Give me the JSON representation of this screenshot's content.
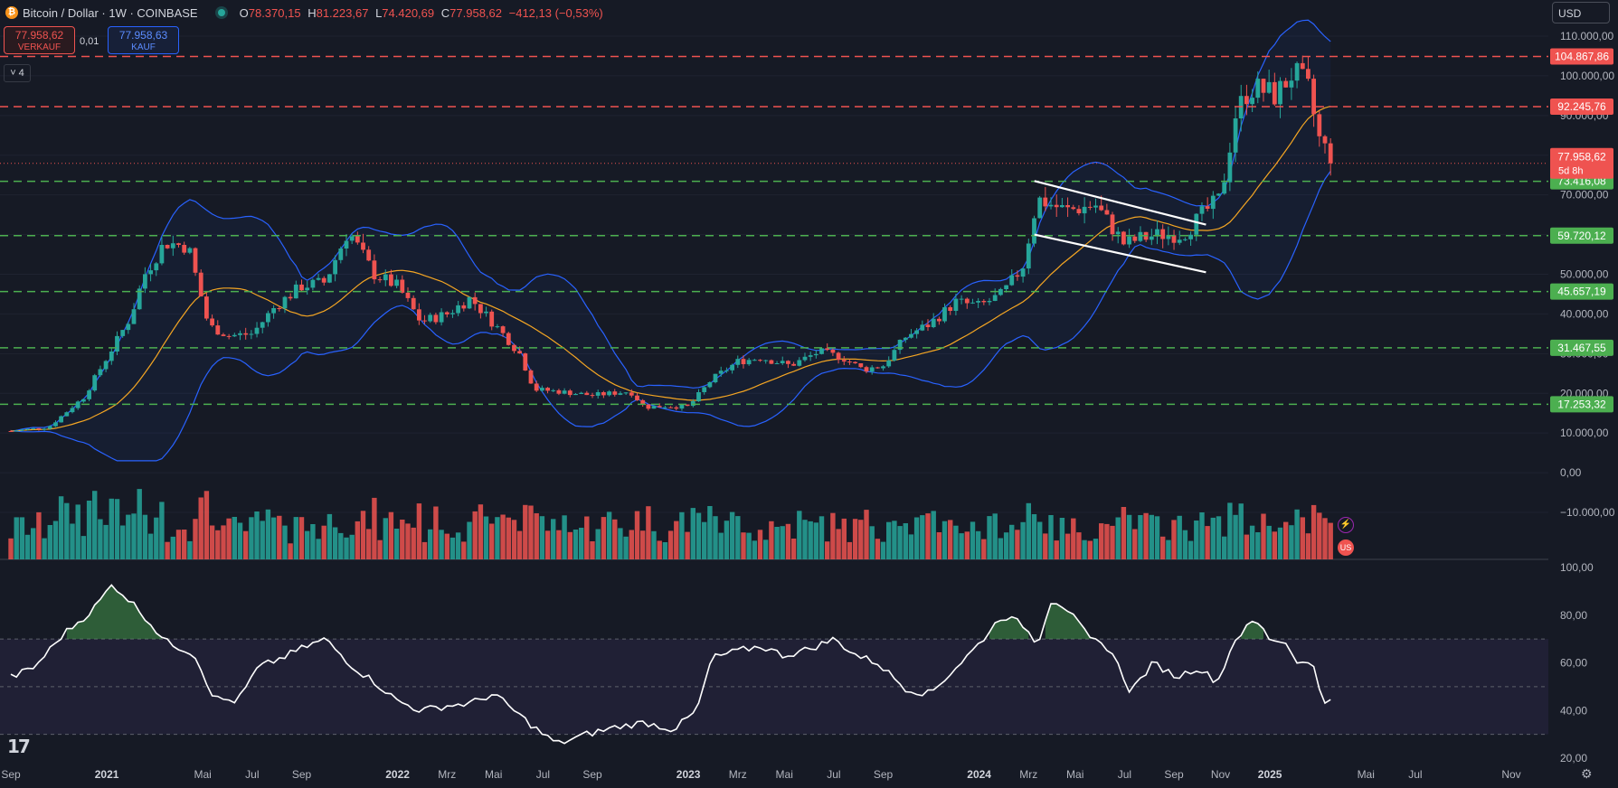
{
  "header": {
    "symbol": "Bitcoin / Dollar · 1W · COINBASE",
    "btc_glyph": "₿",
    "ohlc": [
      {
        "k": "O",
        "v": "78.370,15"
      },
      {
        "k": "H",
        "v": "81.223,67"
      },
      {
        "k": "L",
        "v": "74.420,69"
      },
      {
        "k": "C",
        "v": "77.958,62"
      }
    ],
    "change": "−412,13 (−0,53%)"
  },
  "trade": {
    "sell_price": "77.958,62",
    "sell_label": "VERKAUF",
    "buy_price": "77.958,63",
    "buy_label": "KAUF",
    "spread": "0,01"
  },
  "indicators_collapse": "˅ 4",
  "currency": "USD",
  "logo": "17",
  "gear_icon": "⚙",
  "colors": {
    "background": "#161a25",
    "up": "#26a69a",
    "down": "#ef5350",
    "bollinger": "#2962ff",
    "sma": "#f5a623",
    "resistance": "#ef5350",
    "support": "#4caf50",
    "rsi": "#ffffff"
  },
  "chart_data": [
    {
      "type": "candlestick",
      "title": "Bitcoin / Dollar · 1W · COINBASE",
      "x_ticks": [
        "Sep",
        "2021",
        "Mai",
        "Jul",
        "Sep",
        "2022",
        "Mrz",
        "Mai",
        "Jul",
        "Sep",
        "2023",
        "Mrz",
        "Mai",
        "Jul",
        "Sep",
        "2024",
        "Mrz",
        "Mai",
        "Jul",
        "Sep",
        "Nov",
        "2025",
        "Mai",
        "Jul",
        "Nov"
      ],
      "y_ticks": [
        "110.000,00",
        "100.000,00",
        "90.000,00",
        "80.000,00",
        "70.000,00",
        "60.000,00",
        "50.000,00",
        "40.000,00",
        "30.000,00",
        "20.000,00",
        "10.000,00",
        "0,00",
        "−10.000,00"
      ],
      "ylim": [
        -10000,
        110000
      ],
      "last_price": {
        "value": 77958.62,
        "label": "77.958,62",
        "countdown": "5d 8h"
      },
      "horizontal_levels": [
        {
          "value": 104867.86,
          "label": "104.867,86",
          "kind": "resistance"
        },
        {
          "value": 92245.76,
          "label": "92.245,76",
          "kind": "resistance"
        },
        {
          "value": 73416.08,
          "label": "73.416,08",
          "kind": "support"
        },
        {
          "value": 59720.12,
          "label": "59.720,12",
          "kind": "support"
        },
        {
          "value": 45657.19,
          "label": "45.657,19",
          "kind": "support"
        },
        {
          "value": 31467.55,
          "label": "31.467,55",
          "kind": "support"
        },
        {
          "value": 17253.32,
          "label": "17.253,32",
          "kind": "support"
        }
      ],
      "channel_lines": [
        {
          "x": [
            2024.19,
            2024.78
          ],
          "y": [
            73500,
            62500
          ]
        },
        {
          "x": [
            2024.19,
            2024.78
          ],
          "y": [
            60000,
            50500
          ]
        }
      ],
      "close_keypoints": {
        "x": [
          2020.67,
          2020.8,
          2020.92,
          2021.0,
          2021.08,
          2021.13,
          2021.2,
          2021.28,
          2021.35,
          2021.42,
          2021.5,
          2021.58,
          2021.67,
          2021.75,
          2021.83,
          2021.92,
          2022.0,
          2022.08,
          2022.17,
          2022.25,
          2022.35,
          2022.42,
          2022.47,
          2022.55,
          2022.67,
          2022.8,
          2022.85,
          2022.92,
          2023.0,
          2023.08,
          2023.17,
          2023.25,
          2023.35,
          2023.45,
          2023.53,
          2023.6,
          2023.67,
          2023.75,
          2023.83,
          2023.92,
          2024.0,
          2024.08,
          2024.15,
          2024.2,
          2024.3,
          2024.4,
          2024.5,
          2024.55,
          2024.62,
          2024.7,
          2024.78,
          2024.83,
          2024.88,
          2024.93,
          2024.97,
          2025.02,
          2025.08,
          2025.13,
          2025.17,
          2025.22
        ],
        "y": [
          10500,
          11500,
          19000,
          29000,
          39000,
          50000,
          58000,
          57000,
          37000,
          34500,
          35000,
          42000,
          47000,
          48000,
          61000,
          50000,
          47000,
          38000,
          40000,
          44000,
          36000,
          30000,
          21000,
          20500,
          19500,
          20500,
          16500,
          16800,
          16600,
          23500,
          28000,
          29000,
          27000,
          30500,
          29000,
          26000,
          27000,
          34500,
          37500,
          43000,
          42000,
          45000,
          52000,
          69000,
          66000,
          67500,
          57500,
          59000,
          60000,
          60000,
          66000,
          69000,
          90000,
          97000,
          96500,
          95000,
          101000,
          97000,
          84000,
          77958.62
        ]
      },
      "volume_pane": {
        "range": [
          -10000,
          0
        ]
      },
      "rsi": {
        "name": "RSI",
        "y_ticks": [
          "100,00",
          "80,00",
          "60,00",
          "40,00",
          "20,00"
        ],
        "ylim": [
          20,
          100
        ],
        "band": [
          30,
          70
        ],
        "midline": 50,
        "x": [
          2020.67,
          2020.75,
          2020.85,
          2020.95,
          2021.02,
          2021.08,
          2021.12,
          2021.2,
          2021.3,
          2021.37,
          2021.45,
          2021.52,
          2021.6,
          2021.67,
          2021.75,
          2021.85,
          2021.92,
          2022.0,
          2022.08,
          2022.17,
          2022.25,
          2022.33,
          2022.42,
          2022.5,
          2022.55,
          2022.65,
          2022.75,
          2022.85,
          2022.95,
          2023.03,
          2023.08,
          2023.17,
          2023.25,
          2023.33,
          2023.42,
          2023.5,
          2023.58,
          2023.65,
          2023.75,
          2023.83,
          2023.92,
          2024.0,
          2024.08,
          2024.15,
          2024.2,
          2024.25,
          2024.3,
          2024.38,
          2024.45,
          2024.52,
          2024.6,
          2024.68,
          2024.75,
          2024.82,
          2024.88,
          2024.95,
          2025.0,
          2025.05,
          2025.1,
          2025.15,
          2025.18,
          2025.22
        ],
        "y": [
          54,
          58,
          72,
          82,
          93,
          86,
          81,
          69,
          64,
          45,
          44,
          58,
          62,
          66,
          70,
          58,
          52,
          44,
          40,
          42,
          43,
          47,
          38,
          30,
          26,
          30,
          33,
          35,
          32,
          40,
          62,
          65,
          67,
          63,
          66,
          70,
          63,
          60,
          49,
          47,
          58,
          68,
          80,
          76,
          68,
          87,
          83,
          70,
          66,
          48,
          60,
          54,
          58,
          52,
          70,
          78,
          70,
          69,
          60,
          59,
          45,
          43
        ]
      }
    }
  ]
}
